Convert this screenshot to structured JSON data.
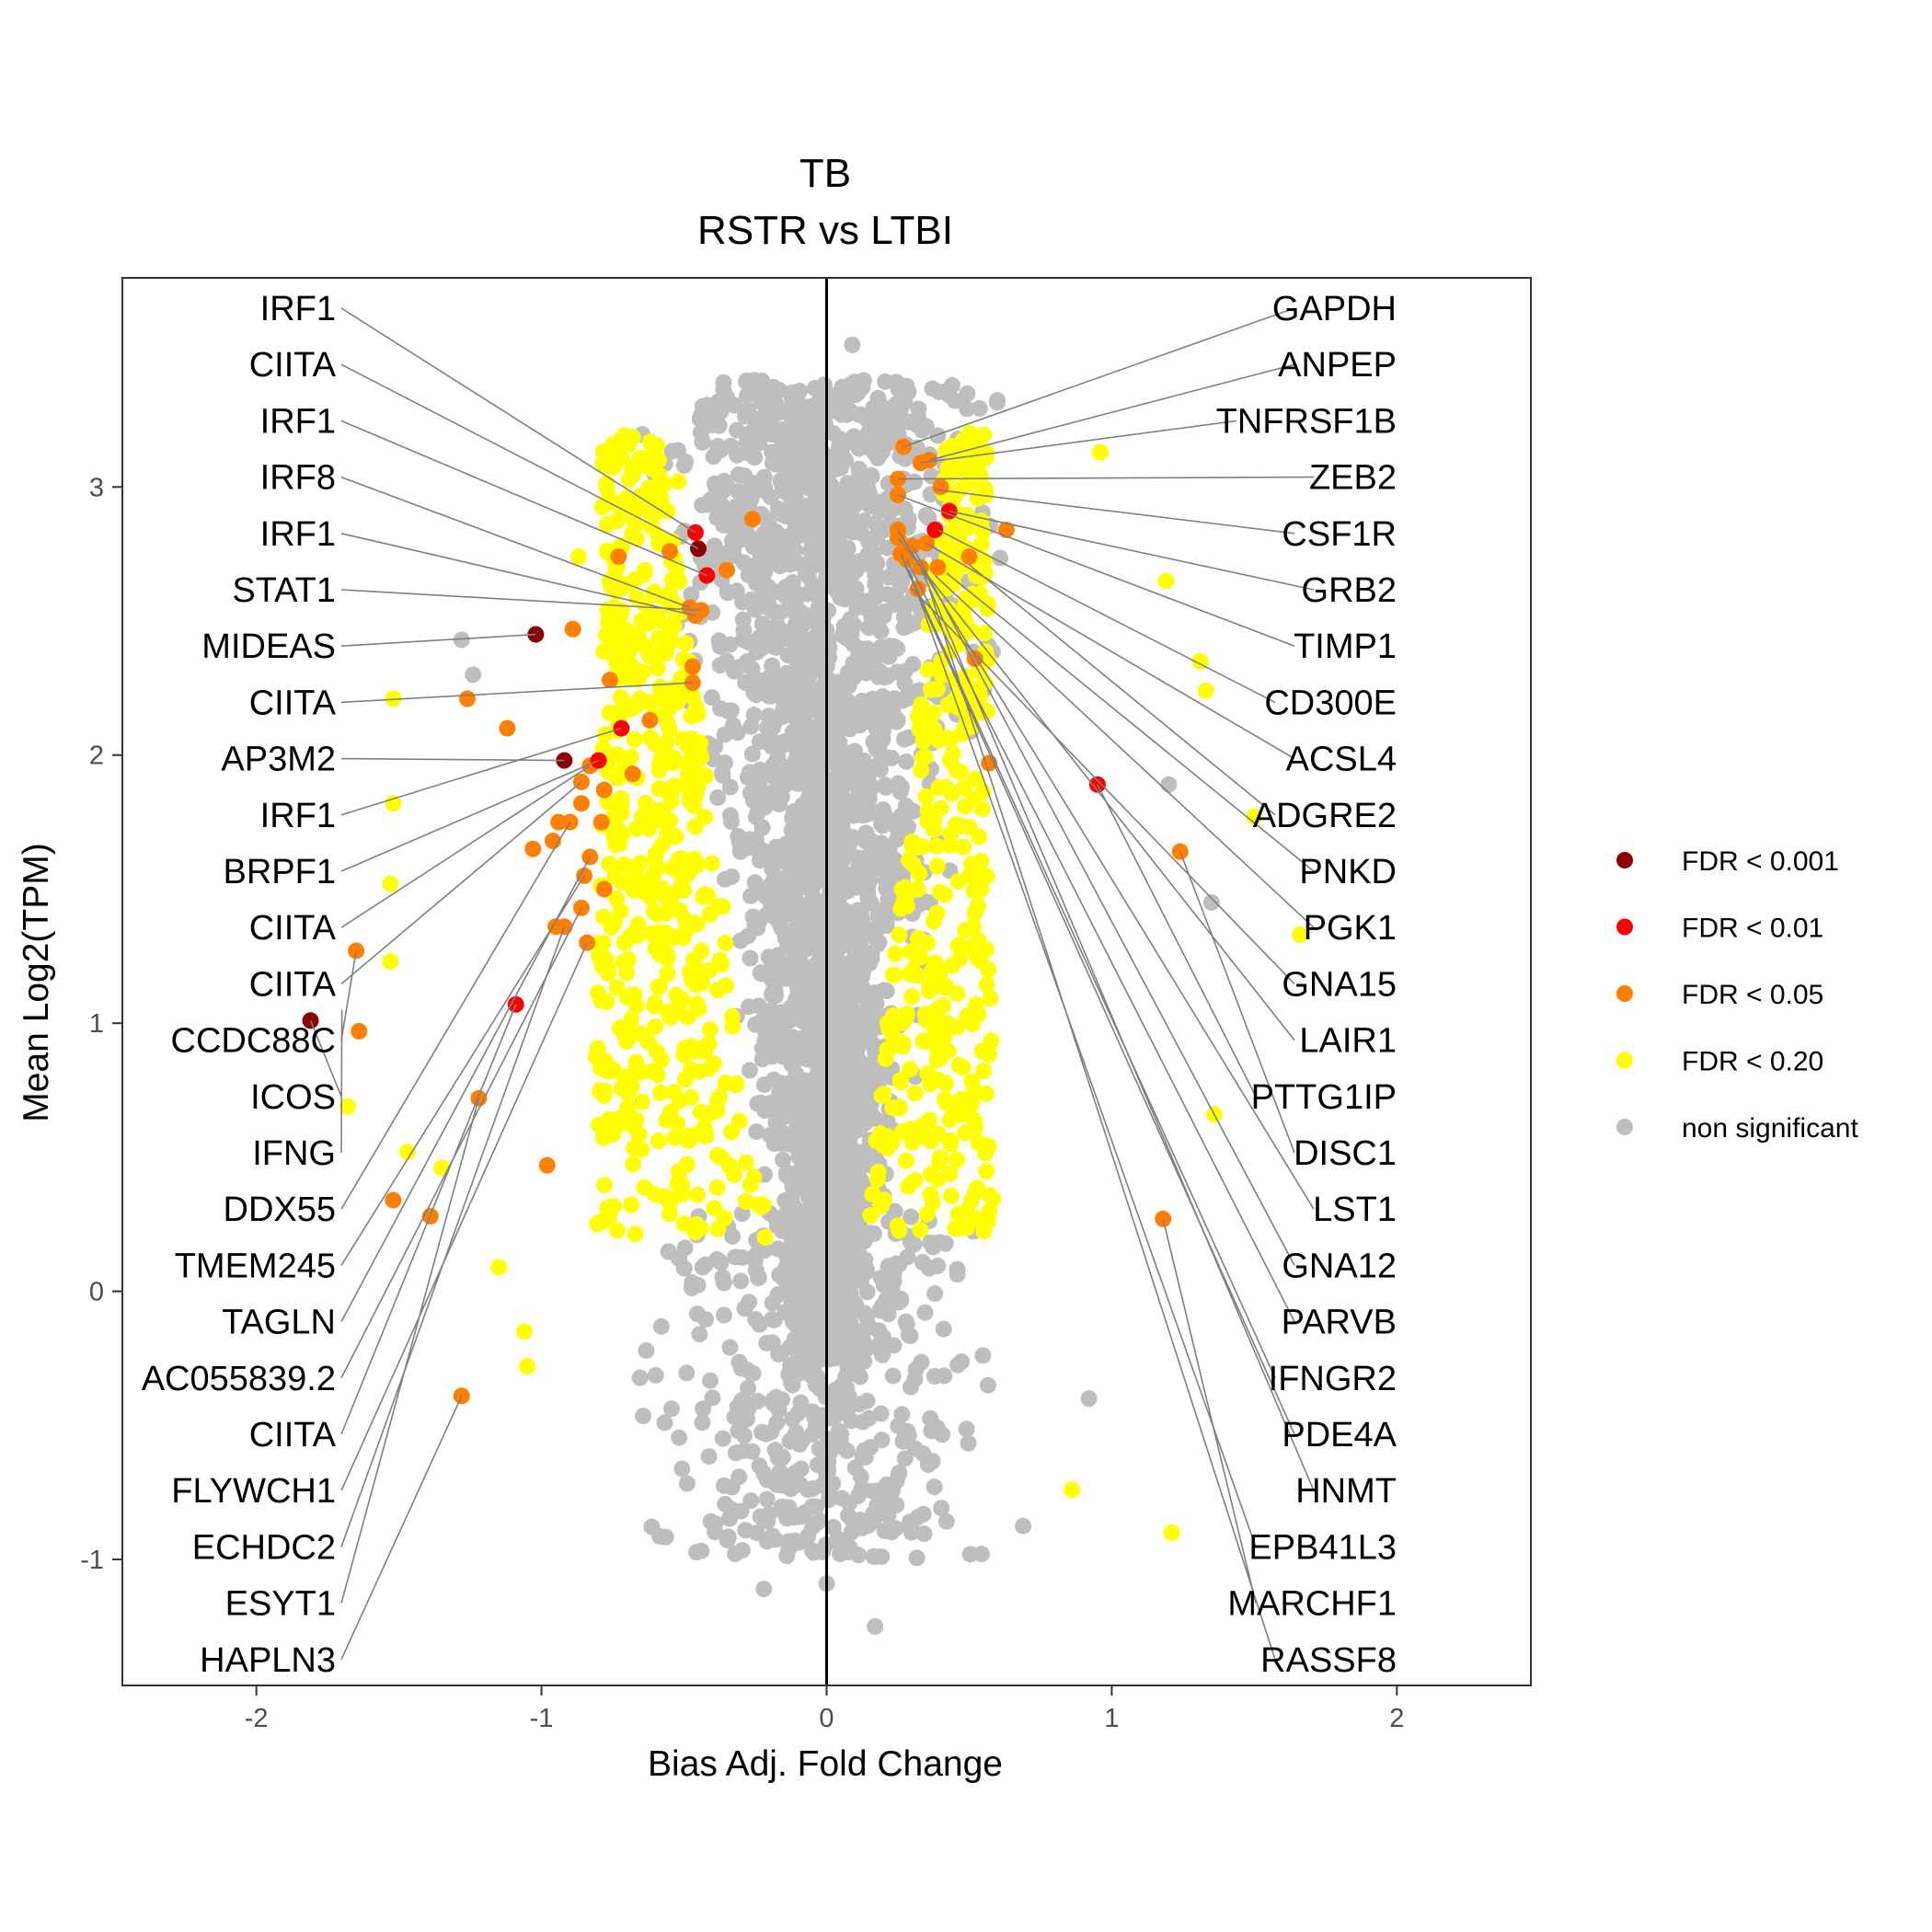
{
  "chart_data": {
    "type": "scatter",
    "title": "TB",
    "subtitle": "RSTR vs LTBI",
    "xlabel": "Bias Adj. Fold Change",
    "ylabel": "Mean Log2(TPM)",
    "xlim": [
      -2.47,
      2.47
    ],
    "ylim": [
      -1.47,
      3.78
    ],
    "x_ticks": [
      -2,
      -1,
      0,
      1,
      2
    ],
    "y_ticks": [
      -1,
      0,
      1,
      2,
      3
    ],
    "x_tick_labels": [
      "-2",
      "-1",
      "0",
      "1",
      "2"
    ],
    "y_tick_labels": [
      "-1",
      "0",
      "1",
      "2",
      "3"
    ],
    "grid": false,
    "vline_x": 0,
    "legend": {
      "position": "right",
      "entries": [
        {
          "label": "FDR < 0.001",
          "color": "#8b0000"
        },
        {
          "label": "FDR < 0.01",
          "color": "#ff0000"
        },
        {
          "label": "FDR < 0.05",
          "color": "#ff7f00"
        },
        {
          "label": "FDR < 0.20",
          "color": "#ffff00"
        },
        {
          "label": "non significant",
          "color": "#bebebe"
        }
      ]
    },
    "labels_left": [
      {
        "gene": "IRF1",
        "x": -0.46,
        "y": 2.83
      },
      {
        "gene": "CIITA",
        "x": -0.45,
        "y": 2.77
      },
      {
        "gene": "IRF1",
        "x": -0.42,
        "y": 2.67
      },
      {
        "gene": "IRF8",
        "x": -0.48,
        "y": 2.55
      },
      {
        "gene": "IRF1",
        "x": -0.46,
        "y": 2.52
      },
      {
        "gene": "STAT1",
        "x": -0.44,
        "y": 2.54
      },
      {
        "gene": "MIDEAS",
        "x": -1.02,
        "y": 2.45
      },
      {
        "gene": "CIITA",
        "x": -0.47,
        "y": 2.27
      },
      {
        "gene": "AP3M2",
        "x": -0.92,
        "y": 1.98
      },
      {
        "gene": "IRF1",
        "x": -0.72,
        "y": 2.1
      },
      {
        "gene": "BRPF1",
        "x": -0.8,
        "y": 1.98
      },
      {
        "gene": "CIITA",
        "x": -0.83,
        "y": 1.96
      },
      {
        "gene": "CIITA",
        "x": -0.86,
        "y": 1.9
      },
      {
        "gene": "CCDC88C",
        "x": -1.65,
        "y": 1.27
      },
      {
        "gene": "ICOS",
        "x": -1.81,
        "y": 1.01
      },
      {
        "gene": "IFNG",
        "x": -1.7,
        "y": 1.05
      },
      {
        "gene": "DDX55",
        "x": -0.9,
        "y": 1.75
      },
      {
        "gene": "TMEM245",
        "x": -0.85,
        "y": 1.55
      },
      {
        "gene": "TAGLN",
        "x": -0.83,
        "y": 1.62
      },
      {
        "gene": "AC055839.2",
        "x": -0.86,
        "y": 1.43
      },
      {
        "gene": "CIITA",
        "x": -1.09,
        "y": 1.07
      },
      {
        "gene": "FLYWCH1",
        "x": -0.84,
        "y": 1.3
      },
      {
        "gene": "ECHDC2",
        "x": -0.92,
        "y": 1.36
      },
      {
        "gene": "ESYT1",
        "x": -1.22,
        "y": 0.72
      },
      {
        "gene": "HAPLN3",
        "x": -1.28,
        "y": -0.39
      }
    ],
    "labels_right": [
      {
        "gene": "GAPDH",
        "x": 0.27,
        "y": 3.15
      },
      {
        "gene": "ANPEP",
        "x": 0.36,
        "y": 3.1
      },
      {
        "gene": "TNFRSF1B",
        "x": 0.33,
        "y": 3.09
      },
      {
        "gene": "ZEB2",
        "x": 0.25,
        "y": 3.03
      },
      {
        "gene": "CSF1R",
        "x": 0.38,
        "y": 2.99
      },
      {
        "gene": "GRB2",
        "x": 0.43,
        "y": 2.91
      },
      {
        "gene": "TIMP1",
        "x": 0.25,
        "y": 2.97
      },
      {
        "gene": "CD300E",
        "x": 0.39,
        "y": 2.84
      },
      {
        "gene": "ACSL4",
        "x": 0.35,
        "y": 2.79
      },
      {
        "gene": "ADGRE2",
        "x": 0.5,
        "y": 2.71
      },
      {
        "gene": "PNKD",
        "x": 0.42,
        "y": 2.68
      },
      {
        "gene": "PGK1",
        "x": 0.38,
        "y": 2.67
      },
      {
        "gene": "GNA15",
        "x": 0.3,
        "y": 2.62
      },
      {
        "gene": "LAIR1",
        "x": 0.25,
        "y": 2.81
      },
      {
        "gene": "PTTG1IP",
        "x": 0.95,
        "y": 1.89
      },
      {
        "gene": "DISC1",
        "x": 1.24,
        "y": 1.64
      },
      {
        "gene": "LST1",
        "x": 0.25,
        "y": 2.84
      },
      {
        "gene": "GNA12",
        "x": 0.3,
        "y": 2.78
      },
      {
        "gene": "PARVB",
        "x": 0.28,
        "y": 2.73
      },
      {
        "gene": "IFNGR2",
        "x": 0.26,
        "y": 2.75
      },
      {
        "gene": "PDE4A",
        "x": 0.27,
        "y": 2.72
      },
      {
        "gene": "HNMT",
        "x": 0.33,
        "y": 2.7
      },
      {
        "gene": "EPB41L3",
        "x": 0.29,
        "y": 2.69
      },
      {
        "gene": "MARCHF1",
        "x": 1.18,
        "y": 0.27
      },
      {
        "gene": "RASSF8",
        "x": 0.36,
        "y": 2.62
      }
    ],
    "highlight_points": [
      {
        "x": -1.81,
        "y": 1.01,
        "fdr": "FDR < 0.001"
      },
      {
        "x": -1.02,
        "y": 2.45,
        "fdr": "FDR < 0.001"
      },
      {
        "x": -0.45,
        "y": 2.77,
        "fdr": "FDR < 0.001"
      },
      {
        "x": -0.92,
        "y": 1.98,
        "fdr": "FDR < 0.001"
      },
      {
        "x": -0.46,
        "y": 2.83,
        "fdr": "FDR < 0.01"
      },
      {
        "x": -0.42,
        "y": 2.67,
        "fdr": "FDR < 0.01"
      },
      {
        "x": -0.72,
        "y": 2.1,
        "fdr": "FDR < 0.01"
      },
      {
        "x": -0.8,
        "y": 1.98,
        "fdr": "FDR < 0.01"
      },
      {
        "x": -1.09,
        "y": 1.07,
        "fdr": "FDR < 0.01"
      },
      {
        "x": 0.43,
        "y": 2.91,
        "fdr": "FDR < 0.01"
      },
      {
        "x": 0.38,
        "y": 2.84,
        "fdr": "FDR < 0.01"
      },
      {
        "x": 0.95,
        "y": 1.89,
        "fdr": "FDR < 0.01"
      },
      {
        "x": -1.65,
        "y": 1.27,
        "fdr": "FDR < 0.05"
      },
      {
        "x": -1.64,
        "y": 0.97,
        "fdr": "FDR < 0.05"
      },
      {
        "x": -1.52,
        "y": 0.34,
        "fdr": "FDR < 0.05"
      },
      {
        "x": -1.39,
        "y": 0.28,
        "fdr": "FDR < 0.05"
      },
      {
        "x": -1.28,
        "y": -0.39,
        "fdr": "FDR < 0.05"
      },
      {
        "x": -1.22,
        "y": 0.72,
        "fdr": "FDR < 0.05"
      },
      {
        "x": -1.26,
        "y": 2.21,
        "fdr": "FDR < 0.05"
      },
      {
        "x": -1.12,
        "y": 2.1,
        "fdr": "FDR < 0.05"
      },
      {
        "x": -0.89,
        "y": 2.47,
        "fdr": "FDR < 0.05"
      },
      {
        "x": -0.73,
        "y": 2.74,
        "fdr": "FDR < 0.05"
      },
      {
        "x": -0.55,
        "y": 2.76,
        "fdr": "FDR < 0.05"
      },
      {
        "x": -0.48,
        "y": 2.55,
        "fdr": "FDR < 0.05"
      },
      {
        "x": -0.44,
        "y": 2.54,
        "fdr": "FDR < 0.05"
      },
      {
        "x": -0.46,
        "y": 2.52,
        "fdr": "FDR < 0.05"
      },
      {
        "x": -0.35,
        "y": 2.69,
        "fdr": "FDR < 0.05"
      },
      {
        "x": -0.26,
        "y": 2.88,
        "fdr": "FDR < 0.05"
      },
      {
        "x": -0.47,
        "y": 2.33,
        "fdr": "FDR < 0.05"
      },
      {
        "x": -0.47,
        "y": 2.27,
        "fdr": "FDR < 0.05"
      },
      {
        "x": -0.76,
        "y": 2.28,
        "fdr": "FDR < 0.05"
      },
      {
        "x": -0.68,
        "y": 1.93,
        "fdr": "FDR < 0.05"
      },
      {
        "x": -0.78,
        "y": 1.87,
        "fdr": "FDR < 0.05"
      },
      {
        "x": -0.86,
        "y": 1.9,
        "fdr": "FDR < 0.05"
      },
      {
        "x": -0.83,
        "y": 1.96,
        "fdr": "FDR < 0.05"
      },
      {
        "x": -0.62,
        "y": 2.13,
        "fdr": "FDR < 0.05"
      },
      {
        "x": -0.9,
        "y": 1.75,
        "fdr": "FDR < 0.05"
      },
      {
        "x": -0.94,
        "y": 1.75,
        "fdr": "FDR < 0.05"
      },
      {
        "x": -0.86,
        "y": 1.82,
        "fdr": "FDR < 0.05"
      },
      {
        "x": -0.83,
        "y": 1.62,
        "fdr": "FDR < 0.05"
      },
      {
        "x": -0.79,
        "y": 1.75,
        "fdr": "FDR < 0.05"
      },
      {
        "x": -0.96,
        "y": 1.68,
        "fdr": "FDR < 0.05"
      },
      {
        "x": -1.03,
        "y": 1.65,
        "fdr": "FDR < 0.05"
      },
      {
        "x": -0.85,
        "y": 1.55,
        "fdr": "FDR < 0.05"
      },
      {
        "x": -0.78,
        "y": 1.5,
        "fdr": "FDR < 0.05"
      },
      {
        "x": -0.86,
        "y": 1.43,
        "fdr": "FDR < 0.05"
      },
      {
        "x": -0.95,
        "y": 1.36,
        "fdr": "FDR < 0.05"
      },
      {
        "x": -0.92,
        "y": 1.36,
        "fdr": "FDR < 0.05"
      },
      {
        "x": -0.84,
        "y": 1.3,
        "fdr": "FDR < 0.05"
      },
      {
        "x": -0.98,
        "y": 0.47,
        "fdr": "FDR < 0.05"
      },
      {
        "x": 0.27,
        "y": 3.15,
        "fdr": "FDR < 0.05"
      },
      {
        "x": 0.33,
        "y": 3.09,
        "fdr": "FDR < 0.05"
      },
      {
        "x": 0.36,
        "y": 3.1,
        "fdr": "FDR < 0.05"
      },
      {
        "x": 0.25,
        "y": 3.03,
        "fdr": "FDR < 0.05"
      },
      {
        "x": 0.4,
        "y": 3.0,
        "fdr": "FDR < 0.05"
      },
      {
        "x": 0.25,
        "y": 2.97,
        "fdr": "FDR < 0.05"
      },
      {
        "x": 0.63,
        "y": 2.84,
        "fdr": "FDR < 0.05"
      },
      {
        "x": 0.25,
        "y": 2.84,
        "fdr": "FDR < 0.05"
      },
      {
        "x": 0.25,
        "y": 2.81,
        "fdr": "FDR < 0.05"
      },
      {
        "x": 0.3,
        "y": 2.78,
        "fdr": "FDR < 0.05"
      },
      {
        "x": 0.35,
        "y": 2.79,
        "fdr": "FDR < 0.05"
      },
      {
        "x": 0.26,
        "y": 2.75,
        "fdr": "FDR < 0.05"
      },
      {
        "x": 0.5,
        "y": 2.74,
        "fdr": "FDR < 0.05"
      },
      {
        "x": 0.28,
        "y": 2.73,
        "fdr": "FDR < 0.05"
      },
      {
        "x": 0.33,
        "y": 2.7,
        "fdr": "FDR < 0.05"
      },
      {
        "x": 0.39,
        "y": 2.7,
        "fdr": "FDR < 0.05"
      },
      {
        "x": 0.32,
        "y": 2.62,
        "fdr": "FDR < 0.05"
      },
      {
        "x": 0.52,
        "y": 2.36,
        "fdr": "FDR < 0.05"
      },
      {
        "x": 0.57,
        "y": 1.97,
        "fdr": "FDR < 0.05"
      },
      {
        "x": 1.24,
        "y": 1.64,
        "fdr": "FDR < 0.05"
      },
      {
        "x": 1.18,
        "y": 0.27,
        "fdr": "FDR < 0.05"
      }
    ],
    "fdr020_points_notable": [
      {
        "x": -0.52,
        "y": 3.02
      },
      {
        "x": -0.87,
        "y": 2.74
      },
      {
        "x": -1.52,
        "y": 2.21
      },
      {
        "x": -1.52,
        "y": 1.82
      },
      {
        "x": -1.53,
        "y": 1.52
      },
      {
        "x": -1.53,
        "y": 1.23
      },
      {
        "x": -1.68,
        "y": 0.69
      },
      {
        "x": -1.47,
        "y": 0.52
      },
      {
        "x": -1.35,
        "y": 0.46
      },
      {
        "x": -1.15,
        "y": 0.09
      },
      {
        "x": -1.06,
        "y": -0.15
      },
      {
        "x": -1.05,
        "y": -0.28
      },
      {
        "x": 0.96,
        "y": 3.13
      },
      {
        "x": 1.19,
        "y": 2.65
      },
      {
        "x": 1.31,
        "y": 2.35
      },
      {
        "x": 1.33,
        "y": 2.24
      },
      {
        "x": 1.5,
        "y": 1.77
      },
      {
        "x": 1.66,
        "y": 1.33
      },
      {
        "x": 1.36,
        "y": 0.66
      },
      {
        "x": 0.86,
        "y": -0.74
      },
      {
        "x": 1.21,
        "y": -0.9
      }
    ],
    "gray_points_notable": [
      {
        "x": 0.09,
        "y": 3.53
      },
      {
        "x": -1.28,
        "y": 2.43
      },
      {
        "x": -1.24,
        "y": 2.3
      },
      {
        "x": 1.2,
        "y": 1.89
      },
      {
        "x": 1.35,
        "y": 1.45
      },
      {
        "x": 0.92,
        "y": -0.4
      },
      {
        "x": -0.22,
        "y": -1.11
      },
      {
        "x": 0.0,
        "y": -1.09
      },
      {
        "x": 0.17,
        "y": -1.25
      },
      {
        "x": -0.3,
        "y": -0.82
      },
      {
        "x": 0.3,
        "y": -0.89
      }
    ]
  }
}
